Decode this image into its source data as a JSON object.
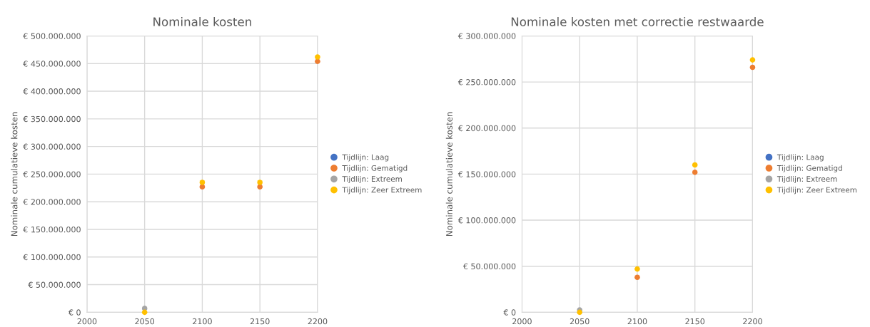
{
  "chart_data": [
    {
      "type": "scatter",
      "title": "Nominale kosten",
      "ylabel": "Nominale cumulatieve kosten",
      "x": [
        2050,
        2100,
        2150,
        2200
      ],
      "xlim": [
        2000,
        2200
      ],
      "xticks": [
        2000,
        2050,
        2100,
        2150,
        2200
      ],
      "ylim": [
        0,
        500000000
      ],
      "yticks": [
        {
          "value": 0,
          "label": "€ 0"
        },
        {
          "value": 50000000,
          "label": "€ 50.000.000"
        },
        {
          "value": 100000000,
          "label": "€ 100.000.000"
        },
        {
          "value": 150000000,
          "label": "€ 150.000.000"
        },
        {
          "value": 200000000,
          "label": "€ 200.000.000"
        },
        {
          "value": 250000000,
          "label": "€ 250.000.000"
        },
        {
          "value": 300000000,
          "label": "€ 300.000.000"
        },
        {
          "value": 350000000,
          "label": "€ 350.000.000"
        },
        {
          "value": 400000000,
          "label": "€ 400.000.000"
        },
        {
          "value": 450000000,
          "label": "€ 450.000.000"
        },
        {
          "value": 500000000,
          "label": "€ 500.000.000"
        }
      ],
      "grid": true,
      "legend": "right",
      "marker": "circle",
      "series": [
        {
          "name": "Tijdlijn: Laag",
          "color": "#4472c4",
          "values": [
            null,
            null,
            null,
            null
          ]
        },
        {
          "name": "Tijdlijn: Gematigd",
          "color": "#ed7d31",
          "values": [
            null,
            227000000,
            227000000,
            454000000
          ]
        },
        {
          "name": "Tijdlijn: Extreem",
          "color": "#a5a5a5",
          "values": [
            7000000,
            null,
            null,
            null
          ]
        },
        {
          "name": "Tijdlijn: Zeer Extreem",
          "color": "#ffc000",
          "values": [
            0,
            235000000,
            235000000,
            462000000
          ]
        }
      ]
    },
    {
      "type": "scatter",
      "title": "Nominale kosten met correctie restwaarde",
      "ylabel": "Nominale cumulatieve kosten",
      "x": [
        2050,
        2100,
        2150,
        2200
      ],
      "xlim": [
        2000,
        2200
      ],
      "xticks": [
        2000,
        2050,
        2100,
        2150,
        2200
      ],
      "ylim": [
        0,
        300000000
      ],
      "yticks": [
        {
          "value": 0,
          "label": "€ 0"
        },
        {
          "value": 50000000,
          "label": "€ 50.000.000"
        },
        {
          "value": 100000000,
          "label": "€ 100.000.000"
        },
        {
          "value": 150000000,
          "label": "€ 150.000.000"
        },
        {
          "value": 200000000,
          "label": "€ 200.000.000"
        },
        {
          "value": 250000000,
          "label": "€ 250.000.000"
        },
        {
          "value": 300000000,
          "label": "€ 300.000.000"
        }
      ],
      "grid": true,
      "legend": "right",
      "marker": "circle",
      "series": [
        {
          "name": "Tijdlijn: Laag",
          "color": "#4472c4",
          "values": [
            null,
            null,
            null,
            null
          ]
        },
        {
          "name": "Tijdlijn: Gematigd",
          "color": "#ed7d31",
          "values": [
            null,
            38000000,
            152000000,
            266000000
          ]
        },
        {
          "name": "Tijdlijn: Extreem",
          "color": "#a5a5a5",
          "values": [
            2500000,
            null,
            null,
            null
          ]
        },
        {
          "name": "Tijdlijn: Zeer Extreem",
          "color": "#ffc000",
          "values": [
            0,
            47000000,
            160000000,
            274000000
          ]
        }
      ]
    }
  ]
}
